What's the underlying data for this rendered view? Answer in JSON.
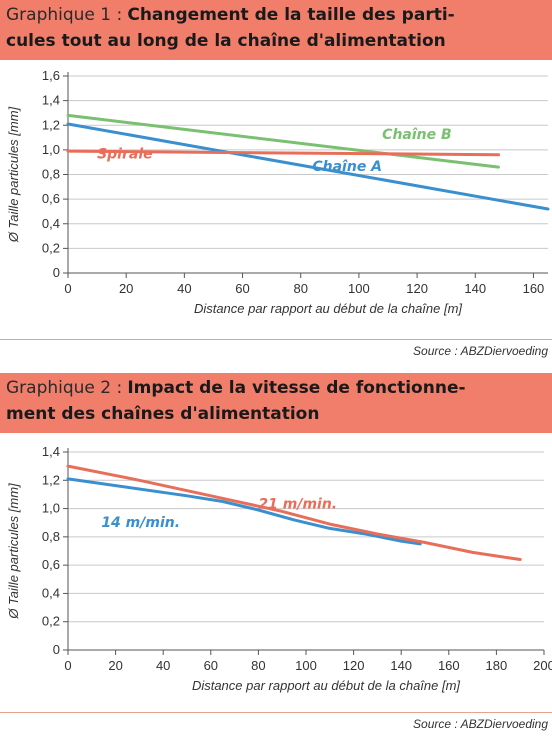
{
  "chart_data": [
    {
      "type": "line",
      "header_label": "Graphique 1 :",
      "title": "Changement de la taille des parti-cules tout au long de la chaîne d'alimentation",
      "title_lines": [
        "Changement de la taille des parti-",
        "cules tout au long de la chaîne d'alimentation"
      ],
      "xlabel": "Distance par rapport au début de la chaîne [m]",
      "ylabel": "Ø Taille particules [mm]",
      "xlim": [
        0,
        165
      ],
      "ylim": [
        0,
        1.6
      ],
      "x_ticks": [
        "0",
        "20",
        "40",
        "60",
        "80",
        "100",
        "120",
        "140",
        "160"
      ],
      "y_ticks": [
        "0",
        "0,2",
        "0,4",
        "0,6",
        "0,8",
        "1,0",
        "1,2",
        "1,4",
        "1,6"
      ],
      "grid": "horizontal",
      "series": [
        {
          "name": "Chaîne A",
          "color": "#3a8fcf",
          "label_at": [
            84,
            0.83
          ],
          "points": [
            [
              0,
              1.21
            ],
            [
              165,
              0.52
            ]
          ]
        },
        {
          "name": "Chaîne B",
          "color": "#79c171",
          "label_at": [
            108,
            1.09
          ],
          "points": [
            [
              0,
              1.28
            ],
            [
              148,
              0.86
            ]
          ]
        },
        {
          "name": "Spirale",
          "color": "#e86e5a",
          "label_at": [
            10,
            0.93
          ],
          "points": [
            [
              0,
              0.99
            ],
            [
              148,
              0.96
            ]
          ]
        }
      ],
      "source": "Source : ABZDiervoeding"
    },
    {
      "type": "line",
      "header_label": "Graphique 2 :",
      "title": "Impact de la vitesse de fonctionne-ment des chaînes d'alimentation",
      "title_lines": [
        "Impact de la vitesse de fonctionne-",
        "ment des chaînes d'alimentation"
      ],
      "xlabel": "Distance par rapport au début de la chaîne [m]",
      "ylabel": "Ø Taille particules [mm]",
      "xlim": [
        0,
        200
      ],
      "ylim": [
        0,
        1.4
      ],
      "x_ticks": [
        "0",
        "20",
        "40",
        "60",
        "80",
        "100",
        "120",
        "140",
        "160",
        "180",
        "200"
      ],
      "y_ticks": [
        "0",
        "0,2",
        "0,4",
        "0,6",
        "0,8",
        "1,0",
        "1,2",
        "1,4"
      ],
      "grid": "horizontal",
      "series": [
        {
          "name": "14 m/min.",
          "color": "#3a8fcf",
          "label_at": [
            14,
            0.87
          ],
          "points": [
            [
              0,
              1.21
            ],
            [
              50,
              1.09
            ],
            [
              65,
              1.05
            ],
            [
              80,
              0.99
            ],
            [
              95,
              0.92
            ],
            [
              110,
              0.86
            ],
            [
              125,
              0.82
            ],
            [
              140,
              0.77
            ],
            [
              148,
              0.75
            ]
          ]
        },
        {
          "name": "21 m/min.",
          "color": "#e86e5a",
          "label_at": [
            80,
            1.0
          ],
          "points": [
            [
              0,
              1.3
            ],
            [
              30,
              1.2
            ],
            [
              60,
              1.09
            ],
            [
              90,
              0.98
            ],
            [
              110,
              0.89
            ],
            [
              130,
              0.82
            ],
            [
              150,
              0.76
            ],
            [
              170,
              0.69
            ],
            [
              190,
              0.64
            ]
          ]
        }
      ],
      "source": "Source : ABZDiervoeding"
    }
  ]
}
